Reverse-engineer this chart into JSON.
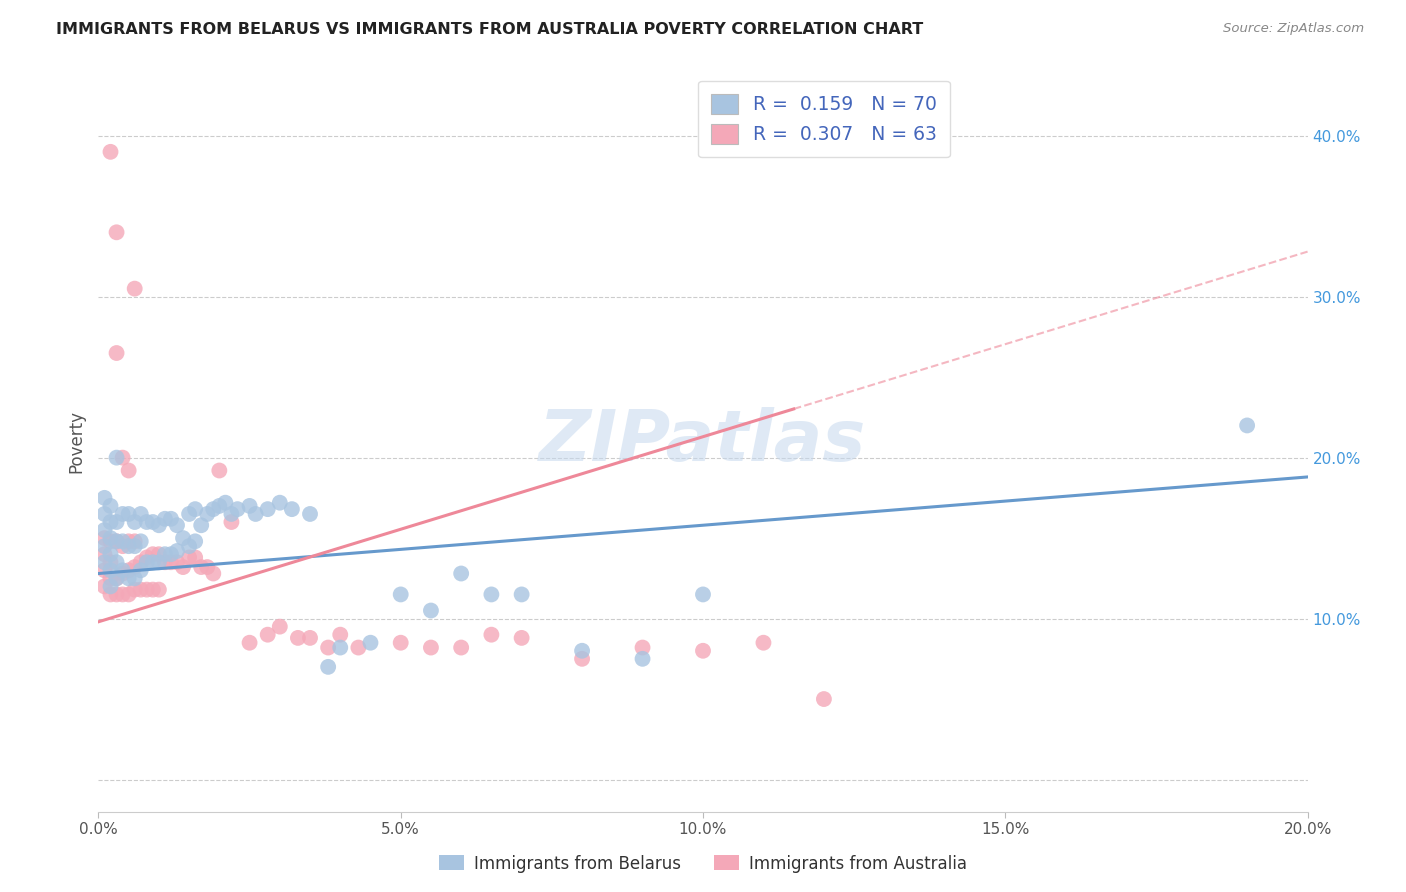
{
  "title": "IMMIGRANTS FROM BELARUS VS IMMIGRANTS FROM AUSTRALIA POVERTY CORRELATION CHART",
  "source": "Source: ZipAtlas.com",
  "ylabel": "Poverty",
  "xlim": [
    0.0,
    0.2
  ],
  "ylim": [
    -0.02,
    0.44
  ],
  "xticks": [
    0.0,
    0.05,
    0.1,
    0.15,
    0.2
  ],
  "yticks": [
    0.0,
    0.1,
    0.2,
    0.3,
    0.4
  ],
  "xtick_labels": [
    "0.0%",
    "5.0%",
    "10.0%",
    "15.0%",
    "20.0%"
  ],
  "ytick_labels": [
    "",
    "10.0%",
    "20.0%",
    "30.0%",
    "40.0%"
  ],
  "watermark": "ZIPatlas",
  "legend_label1": "Immigrants from Belarus",
  "legend_label2": "Immigrants from Australia",
  "R1": 0.159,
  "N1": 70,
  "R2": 0.307,
  "N2": 63,
  "color1": "#a8c4e0",
  "color2": "#f4a8b8",
  "line_color1": "#6699cc",
  "line_color2": "#ee8899",
  "scatter1_x": [
    0.001,
    0.001,
    0.001,
    0.001,
    0.001,
    0.002,
    0.002,
    0.002,
    0.002,
    0.002,
    0.002,
    0.003,
    0.003,
    0.003,
    0.003,
    0.003,
    0.004,
    0.004,
    0.004,
    0.005,
    0.005,
    0.005,
    0.006,
    0.006,
    0.006,
    0.007,
    0.007,
    0.007,
    0.008,
    0.008,
    0.009,
    0.009,
    0.01,
    0.01,
    0.011,
    0.011,
    0.012,
    0.012,
    0.013,
    0.013,
    0.014,
    0.015,
    0.015,
    0.016,
    0.016,
    0.017,
    0.018,
    0.019,
    0.02,
    0.021,
    0.022,
    0.023,
    0.025,
    0.026,
    0.028,
    0.03,
    0.032,
    0.035,
    0.038,
    0.04,
    0.045,
    0.05,
    0.055,
    0.06,
    0.065,
    0.07,
    0.08,
    0.09,
    0.1,
    0.19
  ],
  "scatter1_y": [
    0.135,
    0.145,
    0.155,
    0.165,
    0.175,
    0.12,
    0.13,
    0.14,
    0.15,
    0.16,
    0.17,
    0.125,
    0.135,
    0.148,
    0.16,
    0.2,
    0.13,
    0.148,
    0.165,
    0.125,
    0.145,
    0.165,
    0.125,
    0.145,
    0.16,
    0.13,
    0.148,
    0.165,
    0.135,
    0.16,
    0.135,
    0.16,
    0.135,
    0.158,
    0.14,
    0.162,
    0.14,
    0.162,
    0.142,
    0.158,
    0.15,
    0.145,
    0.165,
    0.148,
    0.168,
    0.158,
    0.165,
    0.168,
    0.17,
    0.172,
    0.165,
    0.168,
    0.17,
    0.165,
    0.168,
    0.172,
    0.168,
    0.165,
    0.07,
    0.082,
    0.085,
    0.115,
    0.105,
    0.128,
    0.115,
    0.115,
    0.08,
    0.075,
    0.115,
    0.22
  ],
  "scatter2_x": [
    0.001,
    0.001,
    0.001,
    0.001,
    0.002,
    0.002,
    0.002,
    0.002,
    0.003,
    0.003,
    0.003,
    0.004,
    0.004,
    0.004,
    0.005,
    0.005,
    0.005,
    0.006,
    0.006,
    0.006,
    0.007,
    0.007,
    0.008,
    0.008,
    0.009,
    0.009,
    0.01,
    0.01,
    0.011,
    0.012,
    0.013,
    0.014,
    0.015,
    0.016,
    0.017,
    0.018,
    0.019,
    0.02,
    0.022,
    0.025,
    0.028,
    0.03,
    0.033,
    0.035,
    0.038,
    0.04,
    0.043,
    0.05,
    0.055,
    0.06,
    0.065,
    0.07,
    0.08,
    0.09,
    0.1,
    0.11,
    0.12,
    0.002,
    0.003,
    0.003,
    0.004,
    0.005,
    0.006
  ],
  "scatter2_y": [
    0.12,
    0.13,
    0.14,
    0.15,
    0.115,
    0.125,
    0.135,
    0.148,
    0.115,
    0.125,
    0.148,
    0.115,
    0.128,
    0.145,
    0.115,
    0.13,
    0.148,
    0.118,
    0.132,
    0.148,
    0.118,
    0.135,
    0.118,
    0.138,
    0.118,
    0.14,
    0.118,
    0.14,
    0.135,
    0.135,
    0.135,
    0.132,
    0.138,
    0.138,
    0.132,
    0.132,
    0.128,
    0.192,
    0.16,
    0.085,
    0.09,
    0.095,
    0.088,
    0.088,
    0.082,
    0.09,
    0.082,
    0.085,
    0.082,
    0.082,
    0.09,
    0.088,
    0.075,
    0.082,
    0.08,
    0.085,
    0.05,
    0.39,
    0.34,
    0.265,
    0.2,
    0.192,
    0.305
  ]
}
